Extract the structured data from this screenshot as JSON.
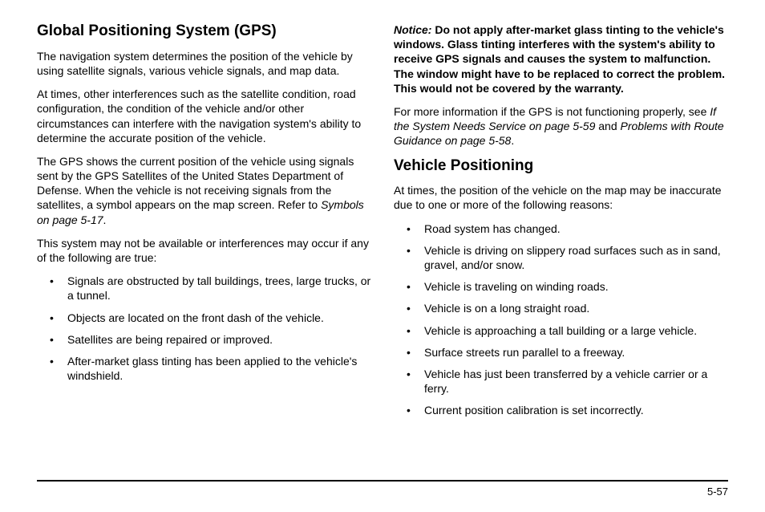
{
  "left": {
    "heading": "Global Positioning System (GPS)",
    "p1": "The navigation system determines the position of the vehicle by using satellite signals, various vehicle signals, and map data.",
    "p2": "At times, other interferences such as the satellite condition, road configuration, the condition of the vehicle and/or other circumstances can interfere with the navigation system's ability to determine the accurate position of the vehicle.",
    "p3a": "The GPS shows the current position of the vehicle using signals sent by the GPS Satellites of the United States Department of Defense. When the vehicle is not receiving signals from the satellites, a symbol appears on the map screen. Refer to ",
    "p3b": "Symbols on page 5-17",
    "p3c": ".",
    "p4": "This system may not be available or interferences may occur if any of the following are true:",
    "bullets": [
      "Signals are obstructed by tall buildings, trees, large trucks, or a tunnel.",
      "Objects are located on the front dash of the vehicle.",
      "Satellites are being repaired or improved.",
      "After-market glass tinting has been applied to the vehicle's windshield."
    ]
  },
  "right": {
    "notice_label": "Notice:",
    "notice_text": " Do not apply after-market glass tinting to the vehicle's windows. Glass tinting interferes with the system's ability to receive GPS signals and causes the system to malfunction. The window might have to be replaced to correct the problem. This would not be covered by the warranty.",
    "p2a": "For more information if the GPS is not functioning properly, see ",
    "p2b": "If the System Needs Service on page 5-59",
    "p2c": " and ",
    "p2d": "Problems with Route Guidance on page 5-58",
    "p2e": ".",
    "heading2": "Vehicle Positioning",
    "p3": "At times, the position of the vehicle on the map may be inaccurate due to one or more of the following reasons:",
    "bullets": [
      "Road system has changed.",
      "Vehicle is driving on slippery road surfaces such as in sand, gravel, and/or snow.",
      "Vehicle is traveling on winding roads.",
      "Vehicle is on a long straight road.",
      "Vehicle is approaching a tall building or a large vehicle.",
      "Surface streets run parallel to a freeway.",
      "Vehicle has just been transferred by a vehicle carrier or a ferry.",
      "Current position calibration is set incorrectly."
    ]
  },
  "page_number": "5-57"
}
